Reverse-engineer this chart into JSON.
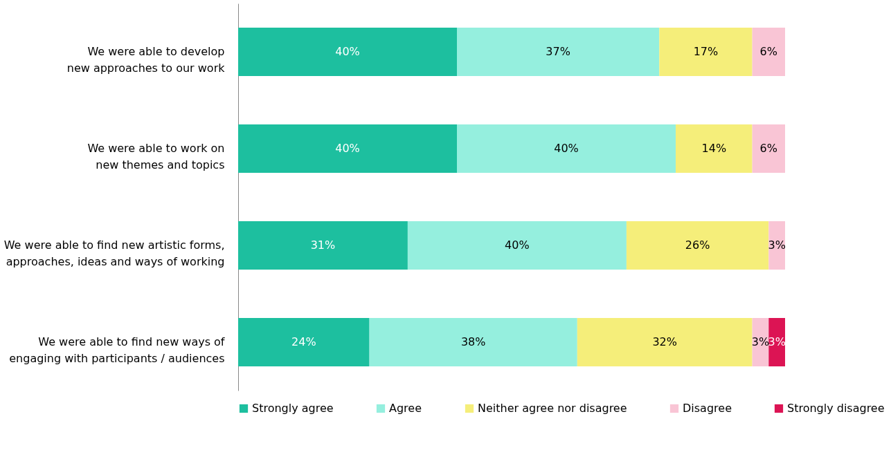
{
  "chart_data": {
    "type": "bar",
    "orientation": "horizontal",
    "stacked": true,
    "legend": "bottom",
    "tick_labels": "y",
    "xlim": [
      0,
      100
    ],
    "categories": [
      "We were able to develop new approaches to our work",
      "We were able to work on new themes and topics",
      "We were able to find new artistic forms, approaches, ideas and ways of working",
      "We were able to find new ways of engaging with participants / audiences"
    ],
    "series": [
      {
        "name": "Strongly agree",
        "color": "#1dbf9f",
        "values": [
          40,
          40,
          31,
          24
        ],
        "value_labels": [
          "40%",
          "40%",
          "31%",
          "24%"
        ]
      },
      {
        "name": "Agree",
        "color": "#95efde",
        "values": [
          37,
          40,
          40,
          38
        ],
        "value_labels": [
          "37%",
          "40%",
          "40%",
          "38%"
        ]
      },
      {
        "name": "Neither agree nor disagree",
        "color": "#f5ee7a",
        "values": [
          17,
          14,
          26,
          32
        ],
        "value_labels": [
          "17%",
          "14%",
          "26%",
          "32%"
        ]
      },
      {
        "name": "Disagree",
        "color": "#f9c5d5",
        "values": [
          6,
          6,
          3,
          3
        ],
        "value_labels": [
          "6%",
          "6%",
          "3%",
          "3%"
        ]
      },
      {
        "name": "Strongly disagree",
        "color": "#dc1454",
        "values": [
          null,
          null,
          null,
          3
        ],
        "value_labels": [
          null,
          null,
          null,
          "3%"
        ]
      }
    ]
  }
}
